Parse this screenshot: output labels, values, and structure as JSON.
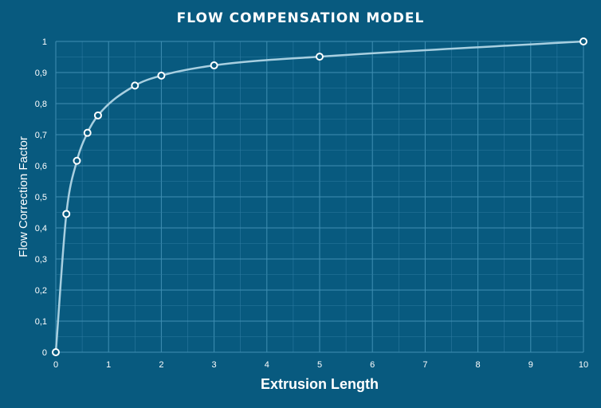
{
  "colors": {
    "background": "#085a7f",
    "grid": "#3f8fb3",
    "curve": "#a8cfe0",
    "marker_stroke": "#ffffff",
    "text": "#ffffff"
  },
  "chart_data": {
    "type": "line",
    "title": "FLOW COMPENSATION MODEL",
    "xlabel": "Extrusion Length",
    "ylabel": "Flow Correction Factor",
    "xlim": [
      0,
      10
    ],
    "ylim": [
      0,
      1
    ],
    "x_ticks": [
      "0",
      "1",
      "2",
      "3",
      "4",
      "5",
      "6",
      "7",
      "8",
      "9",
      "10"
    ],
    "y_ticks": [
      "0",
      "0,1",
      "0,2",
      "0,3",
      "0,4",
      "0,5",
      "0,6",
      "0,7",
      "0,8",
      "0,9",
      "1"
    ],
    "grid": true,
    "legend": "none",
    "series": [
      {
        "x": [
          0,
          0.2,
          0.4,
          0.6,
          0.8,
          1.5,
          2,
          3,
          5,
          10
        ],
        "y": [
          0,
          0.445,
          0.616,
          0.706,
          0.762,
          0.858,
          0.89,
          0.923,
          0.951,
          1.0
        ]
      }
    ]
  }
}
